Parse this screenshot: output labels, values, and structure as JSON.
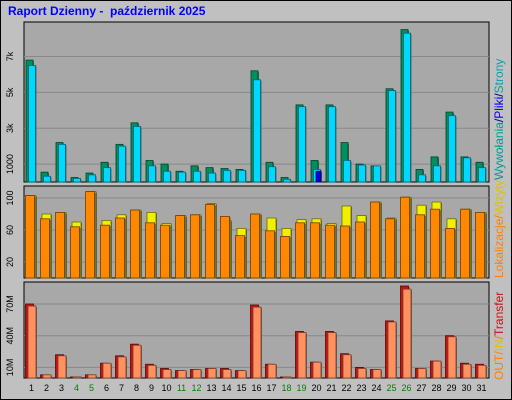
{
  "title": "Raport Dzienny -  październik 2025",
  "colors": {
    "background": "#c0c0c0",
    "plot_bg": "#a8a8a8",
    "title": "#0000ff",
    "wizyty": "#f0f000",
    "strony": "#009060",
    "pliki": "#00d8ff",
    "wywolania": "#00c8e8",
    "lokalizacje": "#ff8800",
    "transfer": "#cc1010",
    "in": "#cc1010",
    "out": "#ff9060",
    "weekend_label": "#008000"
  },
  "legend": {
    "top": [
      {
        "text": "Wywołania",
        "color": "#009898"
      },
      {
        "text": "/",
        "color": "#000080"
      },
      {
        "text": "Pliki",
        "color": "#0000ff"
      },
      {
        "text": "/",
        "color": "#000080"
      },
      {
        "text": "Strony",
        "color": "#00a0b0"
      }
    ],
    "middle": [
      {
        "text": "Lokalizacje",
        "color": "#ff8000"
      },
      {
        "text": "/",
        "color": "#ff8000"
      },
      {
        "text": "Wizyty",
        "color": "#e0c000"
      }
    ],
    "bottom": [
      {
        "text": "OUT",
        "color": "#ff8000"
      },
      {
        "text": "/",
        "color": "#ff8000"
      },
      {
        "text": "IN",
        "color": "#e0c000"
      },
      {
        "text": "/",
        "color": "#ff8000"
      },
      {
        "text": "Transfer",
        "color": "#cc1010"
      }
    ]
  },
  "chart_data": [
    {
      "type": "bar",
      "name": "hits-files-pages",
      "categories": [
        "1",
        "2",
        "3",
        "4",
        "5",
        "6",
        "7",
        "8",
        "9",
        "10",
        "11",
        "12",
        "13",
        "14",
        "15",
        "16",
        "17",
        "18",
        "19",
        "20",
        "21",
        "22",
        "23",
        "24",
        "25",
        "26",
        "27",
        "28",
        "29",
        "30",
        "31"
      ],
      "weekend_days": [
        "4",
        "5",
        "11",
        "12",
        "18",
        "19",
        "25",
        "26"
      ],
      "ytick_labels": [
        "1000",
        "3k",
        "5k",
        "7k"
      ],
      "ylim": [
        0,
        8700
      ],
      "series": [
        {
          "name": "Wywołania",
          "values": [
            6800,
            550,
            2200,
            250,
            500,
            1100,
            2100,
            3300,
            1200,
            1000,
            600,
            900,
            800,
            750,
            700,
            6200,
            1100,
            250,
            4300,
            1200,
            4300,
            2200,
            1000,
            900,
            5200,
            8500,
            700,
            1400,
            3900,
            1400,
            1100
          ]
        },
        {
          "name": "Pliki",
          "values": [
            6500,
            320,
            2100,
            200,
            400,
            800,
            2000,
            3100,
            900,
            600,
            550,
            600,
            500,
            650,
            650,
            5700,
            850,
            150,
            4200,
            700,
            4200,
            1200,
            950,
            900,
            5100,
            8300,
            400,
            900,
            3700,
            1350,
            800
          ]
        },
        {
          "name": "Strony",
          "values": [
            0,
            0,
            0,
            0,
            0,
            0,
            0,
            0,
            0,
            0,
            0,
            0,
            0,
            0,
            0,
            0,
            0,
            0,
            0,
            600,
            0,
            0,
            0,
            0,
            0,
            0,
            0,
            0,
            0,
            0,
            0
          ]
        }
      ]
    },
    {
      "type": "bar",
      "name": "visits-sites",
      "categories": [
        "1",
        "2",
        "3",
        "4",
        "5",
        "6",
        "7",
        "8",
        "9",
        "10",
        "11",
        "12",
        "13",
        "14",
        "15",
        "16",
        "17",
        "18",
        "19",
        "20",
        "21",
        "22",
        "23",
        "24",
        "25",
        "26",
        "27",
        "28",
        "29",
        "30",
        "31"
      ],
      "ytick_labels": [
        "20",
        "60",
        "100"
      ],
      "ylim": [
        0,
        110
      ],
      "series": [
        {
          "name": "Wizyty",
          "values": [
            103,
            80,
            82,
            70,
            108,
            72,
            79,
            85,
            82,
            68,
            78,
            79,
            93,
            72,
            62,
            80,
            75,
            62,
            73,
            74,
            68,
            90,
            78,
            95,
            75,
            101,
            91,
            95,
            74,
            86,
            82
          ]
        },
        {
          "name": "Lokalizacje",
          "values": [
            103,
            74,
            82,
            64,
            108,
            66,
            75,
            85,
            69,
            66,
            78,
            79,
            92,
            77,
            53,
            80,
            59,
            52,
            69,
            69,
            66,
            65,
            70,
            95,
            74,
            101,
            79,
            86,
            62,
            86,
            82
          ]
        }
      ]
    },
    {
      "type": "bar",
      "name": "traffic",
      "categories": [
        "1",
        "2",
        "3",
        "4",
        "5",
        "6",
        "7",
        "8",
        "9",
        "10",
        "11",
        "12",
        "13",
        "14",
        "15",
        "16",
        "17",
        "18",
        "19",
        "20",
        "21",
        "22",
        "23",
        "24",
        "25",
        "26",
        "27",
        "28",
        "29",
        "30",
        "31"
      ],
      "ytick_labels": [
        "10M",
        "40M",
        "70M"
      ],
      "ylim": [
        0,
        87
      ],
      "series": [
        {
          "name": "IN",
          "values": [
            70,
            3,
            22,
            1,
            3,
            14,
            21,
            32,
            13,
            9,
            7,
            8,
            9,
            9,
            7,
            69,
            13,
            1,
            44,
            15,
            44,
            23,
            10,
            8,
            54,
            87,
            9,
            16,
            40,
            14,
            13
          ]
        },
        {
          "name": "Transfer",
          "values": [
            70,
            3,
            22,
            1,
            3,
            14,
            21,
            32,
            13,
            9,
            7,
            8,
            9,
            9,
            7,
            69,
            13,
            1,
            44,
            15,
            44,
            23,
            10,
            8,
            54,
            87,
            9,
            16,
            40,
            14,
            13
          ]
        },
        {
          "name": "OUT",
          "values": [
            68,
            3,
            21,
            1,
            3,
            14,
            20,
            31,
            12,
            8,
            7,
            8,
            9,
            8,
            7,
            67,
            13,
            1,
            43,
            15,
            43,
            22,
            9,
            8,
            53,
            84,
            9,
            16,
            39,
            13,
            12
          ]
        }
      ]
    }
  ]
}
